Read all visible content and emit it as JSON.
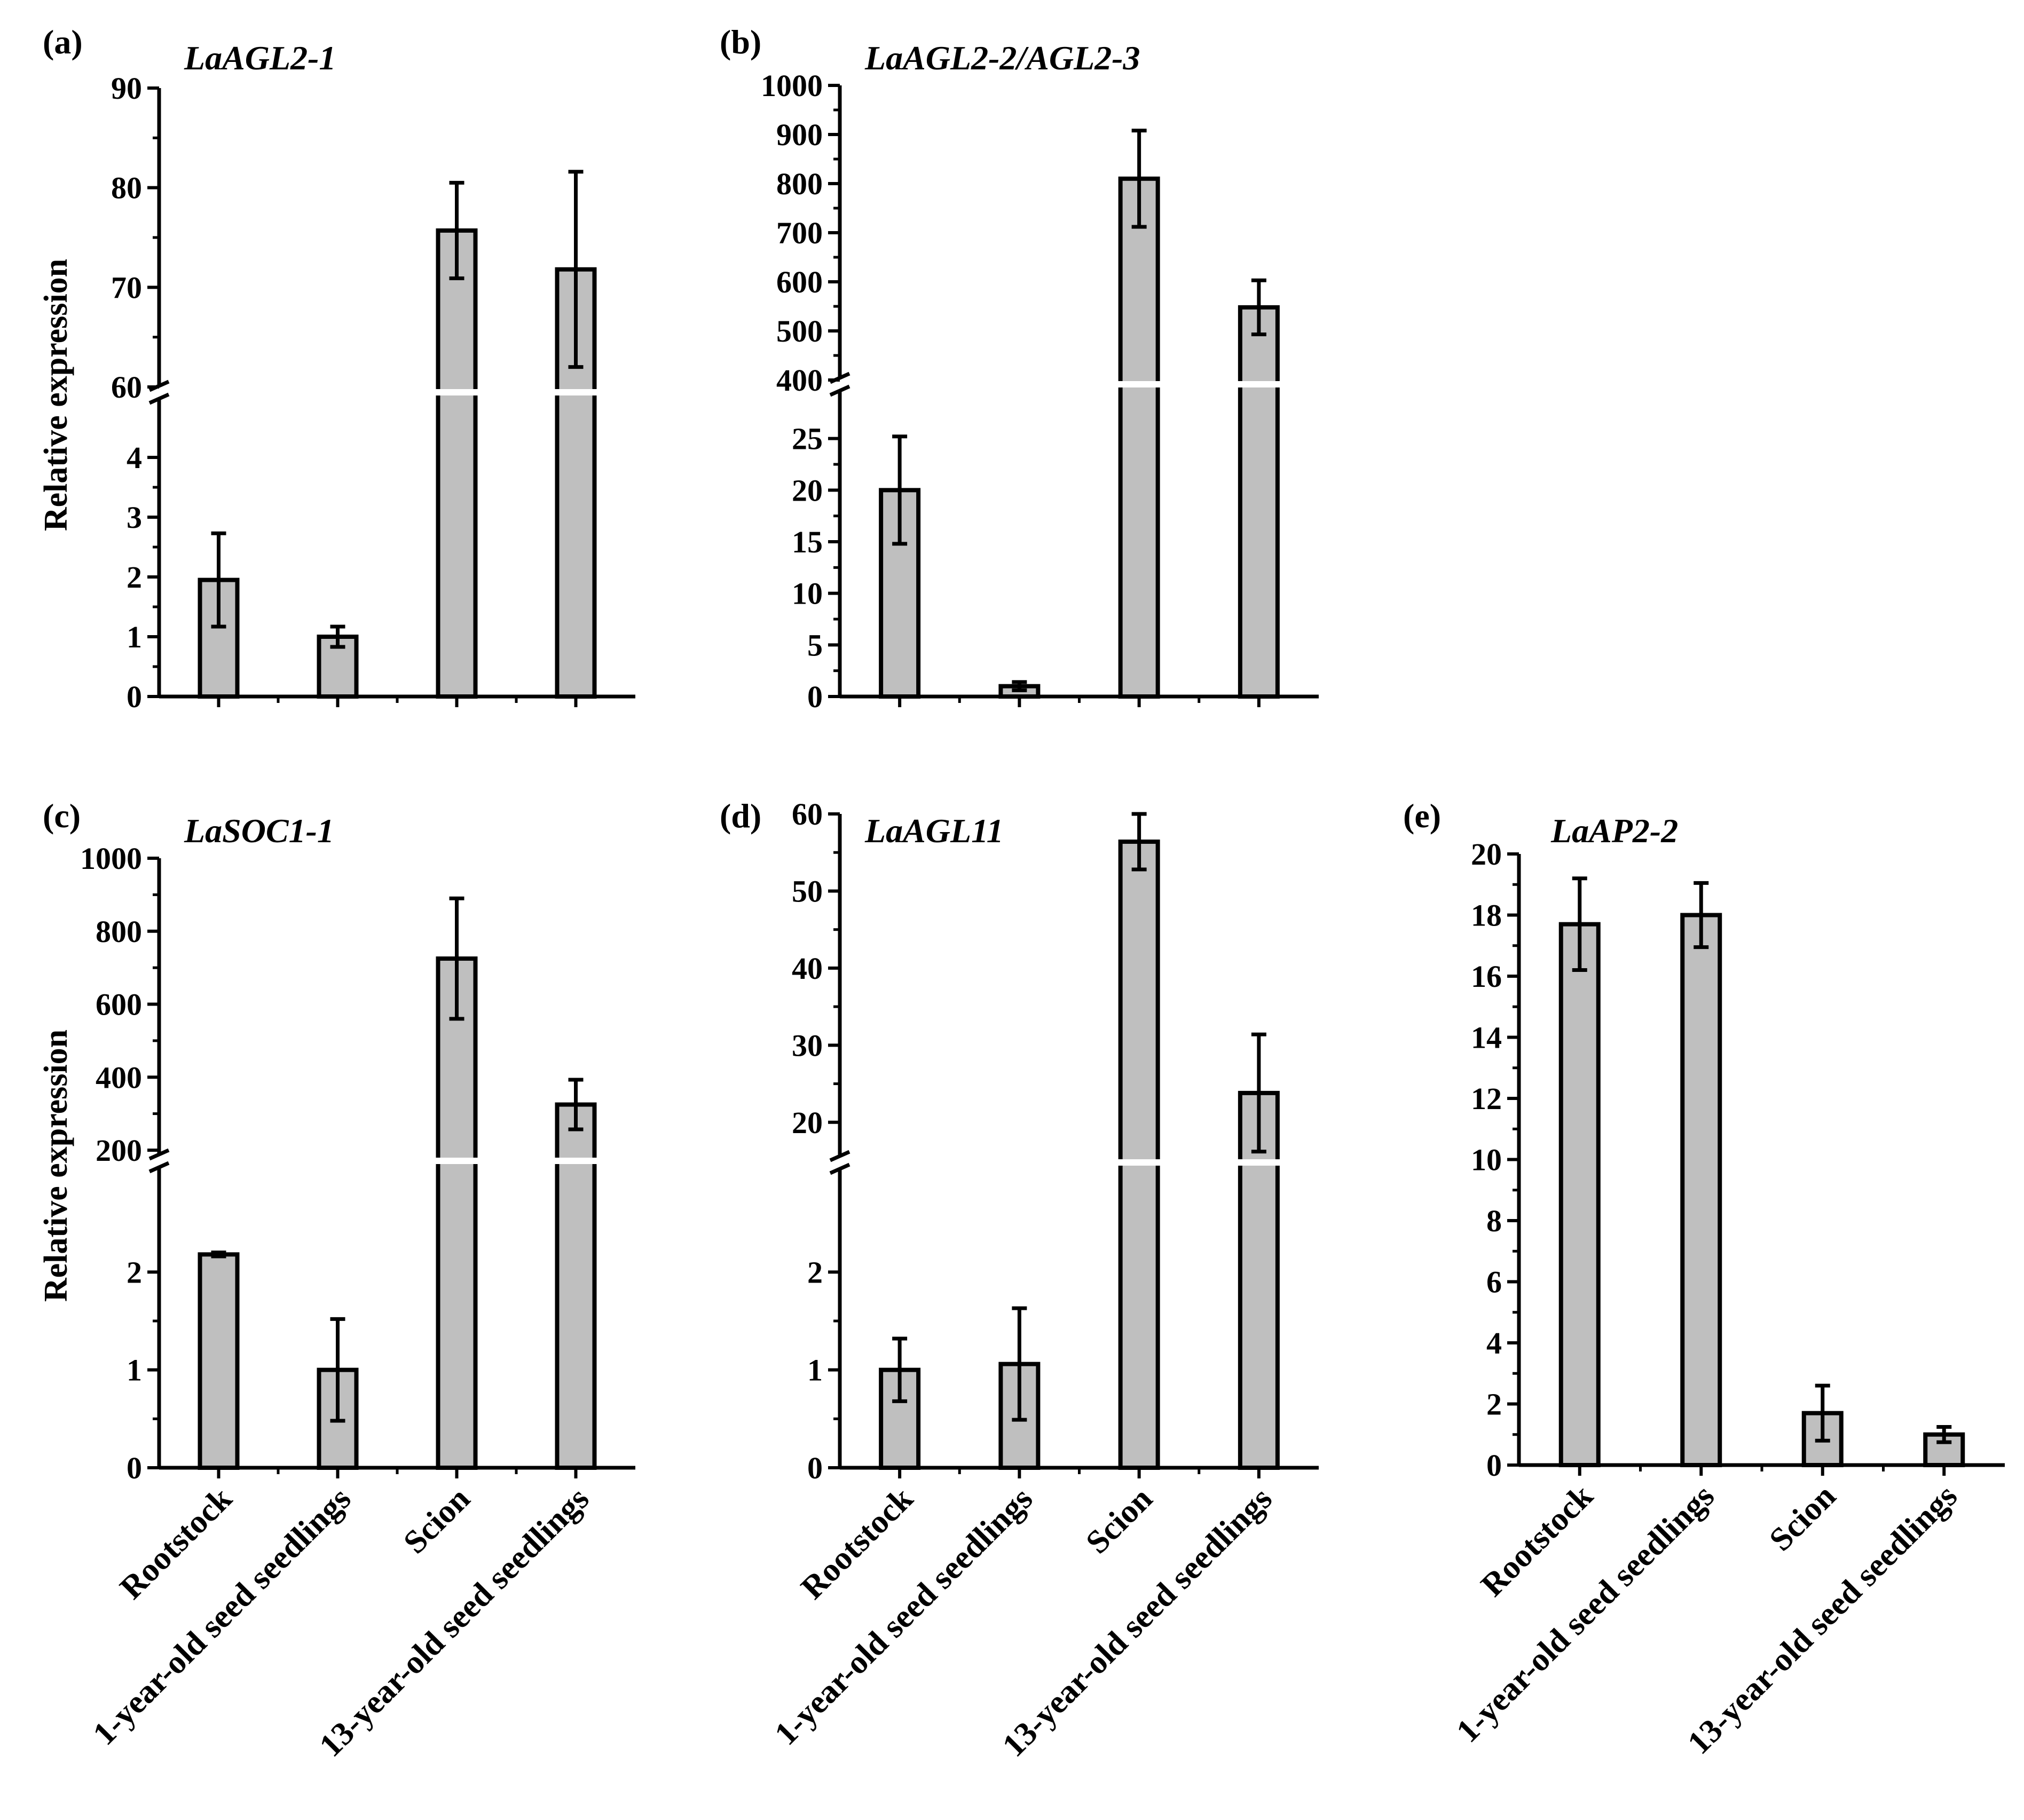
{
  "figure": {
    "background": "#ffffff",
    "bar_color": "#bfbfbf",
    "line_color": "#000000"
  },
  "chart_data": [
    {
      "id": "a",
      "type": "bar",
      "panel_label": "(a)",
      "title": "LaAGL2-1",
      "ylabel": "Relative expression",
      "categories": [
        "Rootstock",
        "1-year-old seed seedlings",
        "Scion",
        "13-year-old seed seedlings"
      ],
      "values": [
        1.95,
        1.0,
        75.7,
        71.8
      ],
      "errors": [
        0.78,
        0.17,
        4.8,
        9.8
      ],
      "axis_break": [
        4.5,
        60
      ],
      "lower": {
        "range": [
          0,
          5
        ],
        "ticks": [
          0,
          1,
          2,
          3,
          4
        ],
        "tick_labels": [
          "0",
          "1",
          "2",
          "3",
          "4"
        ]
      },
      "upper": {
        "range": [
          60,
          90
        ],
        "ticks": [
          60,
          70,
          80,
          90
        ],
        "tick_labels": [
          "60",
          "70",
          "80",
          "90"
        ]
      }
    },
    {
      "id": "b",
      "type": "bar",
      "panel_label": "(b)",
      "title": "LaAGL2-2/AGL2-3",
      "ylabel": "",
      "categories": [
        "Rootstock",
        "1-year-old seed seedlings",
        "Scion",
        "13-year-old seed seedlings"
      ],
      "values": [
        20.0,
        1.0,
        810,
        548
      ],
      "errors": [
        5.2,
        0.4,
        98,
        55
      ],
      "axis_break": [
        30,
        400
      ],
      "lower": {
        "range": [
          0,
          30
        ],
        "ticks": [
          0,
          5,
          10,
          15,
          20,
          25
        ],
        "tick_labels": [
          "0",
          "5",
          "10",
          "15",
          "20",
          "25"
        ]
      },
      "upper": {
        "range": [
          400,
          1000
        ],
        "ticks": [
          400,
          500,
          600,
          700,
          800,
          900,
          1000
        ],
        "tick_labels": [
          "400",
          "500",
          "600",
          "700",
          "800",
          "900",
          "1000"
        ]
      }
    },
    {
      "id": "c",
      "type": "bar",
      "panel_label": "(c)",
      "title": "LaSOC1-1",
      "ylabel": "Relative expression",
      "categories": [
        "Rootstock",
        "1-year-old seed seedlings",
        "Scion",
        "13-year-old seed seedlings"
      ],
      "values": [
        2.18,
        1.0,
        725,
        325
      ],
      "errors": [
        0.02,
        0.52,
        165,
        68
      ],
      "axis_break": [
        2.8,
        200
      ],
      "lower": {
        "range": [
          0,
          3
        ],
        "ticks": [
          0,
          1,
          2
        ],
        "tick_labels": [
          "0",
          "1",
          "2"
        ]
      },
      "upper": {
        "range": [
          200,
          1000
        ],
        "ticks": [
          200,
          400,
          600,
          800,
          1000
        ],
        "tick_labels": [
          "200",
          "400",
          "600",
          "800",
          "1000"
        ]
      }
    },
    {
      "id": "d",
      "type": "bar",
      "panel_label": "(d)",
      "title": "LaAGL11",
      "ylabel": "",
      "categories": [
        "Rootstock",
        "1-year-old seed seedlings",
        "Scion",
        "13-year-old seed seedlings"
      ],
      "values": [
        1.0,
        1.06,
        56.4,
        23.8
      ],
      "errors": [
        0.32,
        0.57,
        3.6,
        7.6
      ],
      "axis_break": [
        3,
        15
      ],
      "lower": {
        "range": [
          0,
          3
        ],
        "ticks": [
          0,
          1,
          2
        ],
        "tick_labels": [
          "0",
          "1",
          "2"
        ]
      },
      "upper": {
        "range": [
          15,
          60
        ],
        "ticks": [
          20,
          30,
          40,
          50,
          60
        ],
        "tick_labels": [
          "20",
          "30",
          "40",
          "50",
          "60"
        ]
      }
    },
    {
      "id": "e",
      "type": "bar",
      "panel_label": "(e)",
      "title": "LaAP2-2",
      "ylabel": "",
      "categories": [
        "Rootstock",
        "1-year-old seed seedlings",
        "Scion",
        "13-year-old seed seedlings"
      ],
      "values": [
        17.7,
        18.0,
        1.7,
        1.0
      ],
      "errors": [
        1.5,
        1.05,
        0.9,
        0.25
      ],
      "ylim": [
        0,
        20
      ],
      "ticks": [
        0,
        2,
        4,
        6,
        8,
        10,
        12,
        14,
        16,
        18,
        20
      ],
      "tick_labels": [
        "0",
        "2",
        "4",
        "6",
        "8",
        "10",
        "12",
        "14",
        "16",
        "18",
        "20"
      ]
    }
  ]
}
